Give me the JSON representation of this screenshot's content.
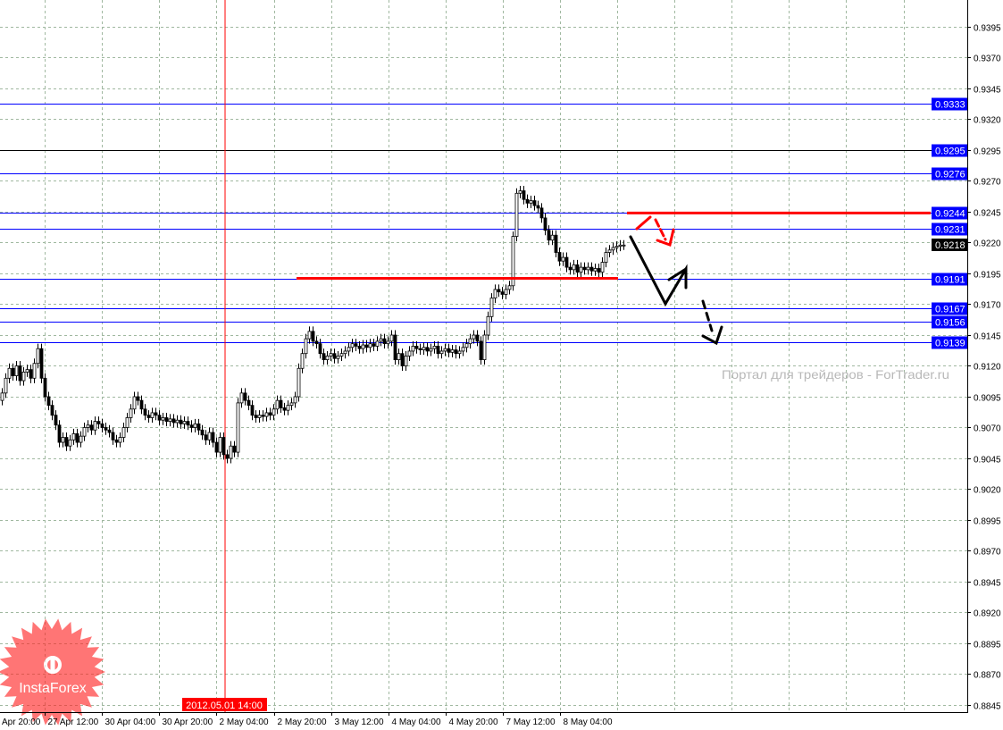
{
  "chart_data": {
    "type": "candlestick",
    "instrument_timeframe_hours": 1,
    "ylim": [
      0.8845,
      0.9395
    ],
    "y_ticks": [
      "0.9395",
      "0.9370",
      "0.9345",
      "0.9320",
      "0.9295",
      "0.9270",
      "0.9245",
      "0.9220",
      "0.9195",
      "0.9170",
      "0.9145",
      "0.9120",
      "0.9095",
      "0.9070",
      "0.9045",
      "0.9020",
      "0.8995",
      "0.8970",
      "0.8945",
      "0.8920",
      "0.8895",
      "0.8870",
      "0.8845"
    ],
    "x_ticks": [
      "Apr 20:00",
      "27 Apr 12:00",
      "30 Apr 04:00",
      "30 Apr 20:00",
      "2 May 04:00",
      "2 May 20:00",
      "3 May 12:00",
      "4 May 04:00",
      "4 May 20:00",
      "7 May 12:00",
      "8 May 04:00"
    ],
    "cursor_time_label": "2012.05.01 14:00",
    "grid": true,
    "closes": [
      0.9098,
      0.911,
      0.9118,
      0.9112,
      0.912,
      0.9108,
      0.9115,
      0.9117,
      0.911,
      0.9122,
      0.9134,
      0.911,
      0.9095,
      0.9088,
      0.908,
      0.9072,
      0.9058,
      0.9062,
      0.9055,
      0.906,
      0.9065,
      0.9058,
      0.9063,
      0.907,
      0.9072,
      0.9068,
      0.9075,
      0.9073,
      0.907,
      0.9068,
      0.9066,
      0.906,
      0.9058,
      0.9062,
      0.907,
      0.9078,
      0.9085,
      0.9095,
      0.9092,
      0.9085,
      0.908,
      0.9078,
      0.9082,
      0.908,
      0.9076,
      0.9078,
      0.9075,
      0.9077,
      0.9074,
      0.9076,
      0.9073,
      0.9075,
      0.9072,
      0.907,
      0.9073,
      0.9068,
      0.9064,
      0.906,
      0.9066,
      0.9058,
      0.905,
      0.9062,
      0.9048,
      0.9045,
      0.9055,
      0.905,
      0.909,
      0.9098,
      0.9092,
      0.9088,
      0.908,
      0.9078,
      0.908,
      0.9079,
      0.9082,
      0.908,
      0.9085,
      0.9092,
      0.9086,
      0.9084,
      0.9088,
      0.909,
      0.9095,
      0.9118,
      0.913,
      0.9142,
      0.9148,
      0.914,
      0.9138,
      0.913,
      0.9125,
      0.9128,
      0.913,
      0.9126,
      0.9128,
      0.913,
      0.9132,
      0.9135,
      0.9138,
      0.9136,
      0.9134,
      0.9137,
      0.9135,
      0.9138,
      0.9136,
      0.914,
      0.9142,
      0.9138,
      0.914,
      0.9145,
      0.9125,
      0.913,
      0.912,
      0.9128,
      0.9132,
      0.9136,
      0.9134,
      0.9133,
      0.9135,
      0.9132,
      0.9134,
      0.9136,
      0.913,
      0.9132,
      0.9134,
      0.9131,
      0.9133,
      0.913,
      0.9132,
      0.9135,
      0.9138,
      0.9142,
      0.9145,
      0.914,
      0.9125,
      0.9145,
      0.916,
      0.9175,
      0.9182,
      0.918,
      0.9178,
      0.9182,
      0.9185,
      0.9225,
      0.926,
      0.9262,
      0.9255,
      0.9252,
      0.9254,
      0.925,
      0.9248,
      0.924,
      0.923,
      0.9222,
      0.9226,
      0.9212,
      0.9205,
      0.9208,
      0.92,
      0.9198,
      0.9202,
      0.9196,
      0.92,
      0.9198,
      0.92,
      0.9197,
      0.9199,
      0.9196,
      0.9204,
      0.9212,
      0.9214,
      0.9216,
      0.9217,
      0.9218,
      0.9218
    ],
    "current_price": "0.9218",
    "horizontal_levels": [
      {
        "value": "0.9333",
        "color": "#0000ff"
      },
      {
        "value": "0.9295",
        "color": "#000000"
      },
      {
        "value": "0.9276",
        "color": "#0000ff"
      },
      {
        "value": "0.9244",
        "color": "#0000ff"
      },
      {
        "value": "0.9231",
        "color": "#0000ff"
      },
      {
        "value": "0.9191",
        "color": "#0000ff"
      },
      {
        "value": "0.9167",
        "color": "#0000ff"
      },
      {
        "value": "0.9156",
        "color": "#0000ff"
      },
      {
        "value": "0.9139",
        "color": "#0000ff"
      }
    ],
    "red_levels": [
      "0.9244",
      "0.9191"
    ]
  },
  "colors": {
    "level": "#0000ff",
    "accent": "#ff0000",
    "grid": "#a0b8a0",
    "label_bg": "#0000ff",
    "current_bg": "#000000"
  },
  "watermark": "Портал для трейдеров - ForTrader.ru",
  "logo": "InstaForex"
}
